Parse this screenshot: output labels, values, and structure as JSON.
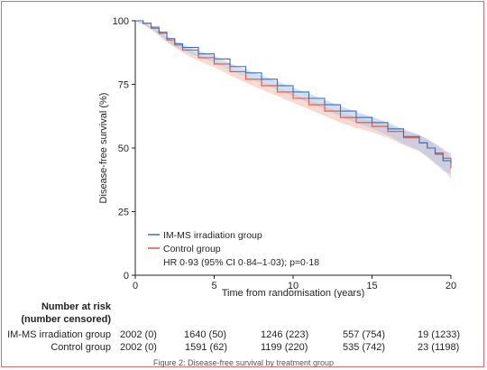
{
  "chart_data": {
    "type": "line",
    "xlabel": "Time from randomisation (years)",
    "ylabel": "Disease-free survival (%)",
    "xlim": [
      0,
      20
    ],
    "ylim": [
      0,
      100
    ],
    "xticks": [
      "0",
      "5",
      "10",
      "15",
      "20"
    ],
    "yticks": [
      "0",
      "25",
      "50",
      "75",
      "100"
    ],
    "grid": false,
    "legend_position": "bottom-left",
    "annotation": "HR 0·93 (95% CI 0·84–1·03); p=0·18",
    "series": [
      {
        "name": "IM-MS irradiation group",
        "color": "#3a6fb5",
        "band_color": "#aac4ea",
        "x": [
          0,
          0.5,
          1,
          1.5,
          2,
          2.5,
          3,
          4,
          5,
          6,
          7,
          8,
          9,
          10,
          11,
          12,
          13,
          14,
          15,
          16,
          17,
          18,
          18.5,
          19,
          19.5,
          20
        ],
        "y": [
          100,
          99,
          97.5,
          95.5,
          93,
          91,
          89.5,
          87,
          85,
          82,
          79.5,
          77,
          74.5,
          72,
          69.5,
          67,
          64.5,
          62,
          60,
          57.5,
          54.5,
          52,
          50,
          48,
          45,
          44
        ],
        "ci_half_width": [
          0,
          0.4,
          0.6,
          0.8,
          1,
          1,
          1.1,
          1.2,
          1.3,
          1.3,
          1.4,
          1.5,
          1.6,
          1.7,
          1.8,
          1.9,
          2,
          2.1,
          2.3,
          2.5,
          2.8,
          3.2,
          3.5,
          3.8,
          4,
          4.2
        ]
      },
      {
        "name": "Control group",
        "color": "#e4563f",
        "band_color": "#f6b9aa",
        "x": [
          0,
          0.5,
          1,
          1.5,
          2,
          2.5,
          3,
          4,
          5,
          6,
          7,
          8,
          9,
          10,
          11,
          12,
          13,
          14,
          15,
          16,
          17,
          18,
          18.5,
          19,
          19.5,
          20
        ],
        "y": [
          100,
          99,
          97,
          95,
          92.5,
          90.5,
          88.5,
          85.5,
          83,
          80,
          77,
          74.5,
          72,
          69.5,
          67,
          64.5,
          62,
          60,
          58.5,
          56.5,
          54,
          52,
          50,
          47.5,
          46,
          42
        ],
        "ci_half_width": [
          0,
          0.4,
          0.6,
          0.8,
          1,
          1,
          1.1,
          1.2,
          1.3,
          1.3,
          1.4,
          1.5,
          1.6,
          1.7,
          1.8,
          1.9,
          2,
          2.1,
          2.3,
          2.5,
          2.8,
          3.2,
          3.5,
          3.8,
          4,
          4.2
        ]
      }
    ]
  },
  "risk_table": {
    "header_line1": "Number at risk",
    "header_line2": "(number censored)",
    "rows": [
      {
        "label": "IM-MS irradiation group",
        "values": [
          "2002 (0)",
          "1640 (50)",
          "1246 (223)",
          "557 (754)",
          "19 (1233)"
        ]
      },
      {
        "label": "Control group",
        "values": [
          "2002 (0)",
          "1591 (62)",
          "1199 (220)",
          "535 (742)",
          "23 (1198)"
        ]
      }
    ]
  },
  "caption": "Figure 2: Disease-free survival by treatment group"
}
